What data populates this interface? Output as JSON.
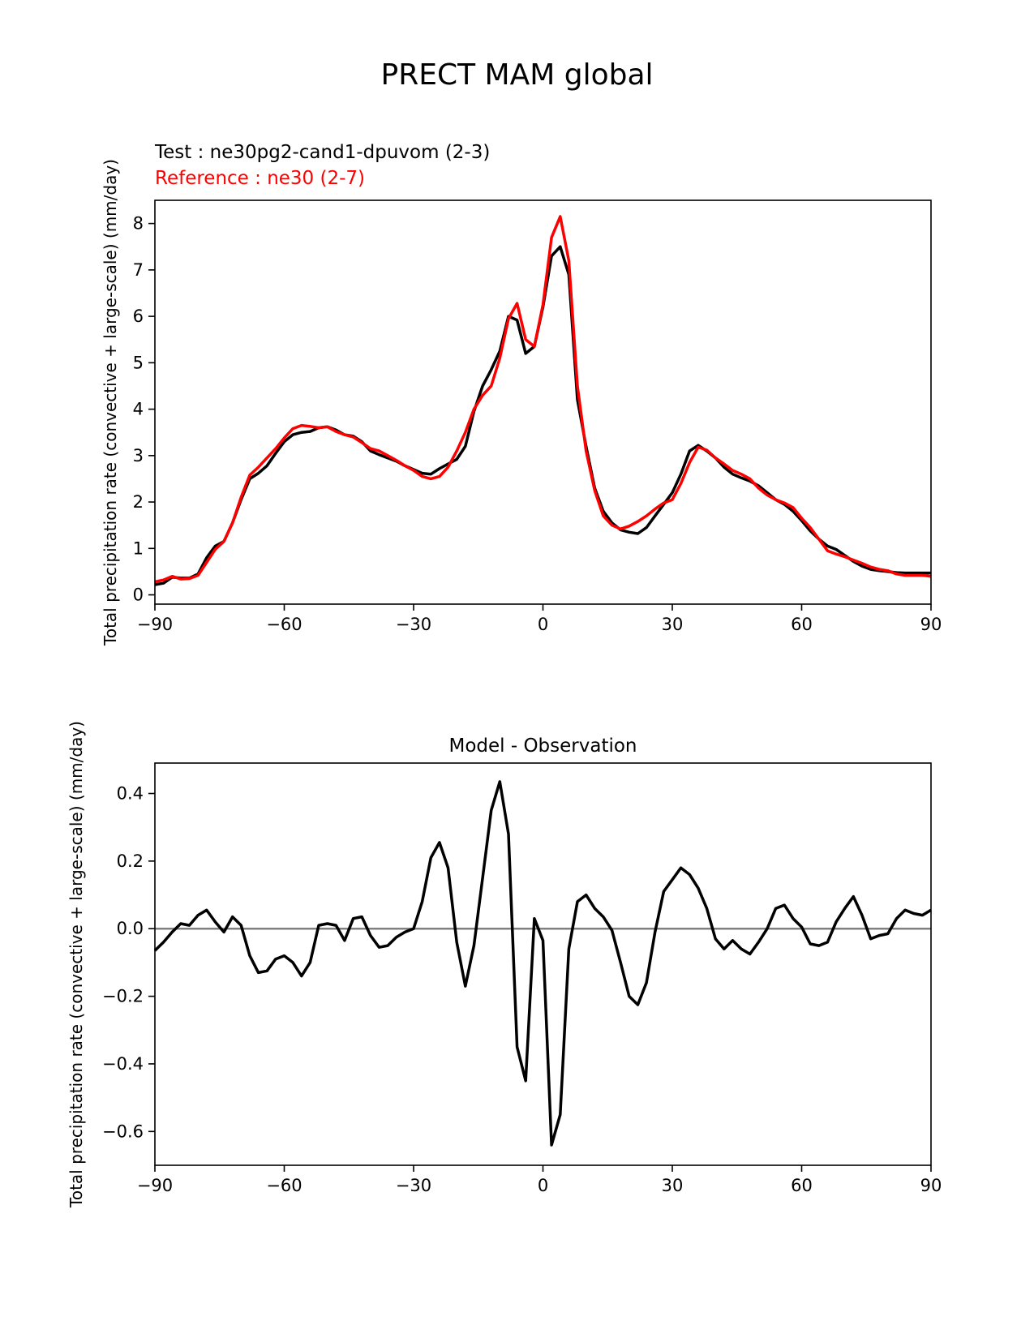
{
  "page_title": "PRECT MAM global",
  "legend": {
    "test_label": "Test : ne30pg2-cand1-dpuvom (2-3)",
    "reference_label": "Reference : ne30 (2-7)"
  },
  "colors": {
    "test": "#000000",
    "reference": "#ff0000",
    "zero_line": "#808080"
  },
  "chart_data": [
    {
      "type": "line",
      "title": "",
      "xlabel": "",
      "ylabel": "Total precipitation rate (convective + large-scale) (mm/day)",
      "xlim": [
        -90,
        90
      ],
      "ylim": [
        -0.2,
        8.5
      ],
      "xticks": [
        -90,
        -60,
        -30,
        0,
        30,
        60,
        90
      ],
      "yticks": [
        0,
        1,
        2,
        3,
        4,
        5,
        6,
        7,
        8
      ],
      "xtick_labels": [
        "−90",
        "−60",
        "−30",
        "0",
        "30",
        "60",
        "90"
      ],
      "ytick_labels": [
        "0",
        "1",
        "2",
        "3",
        "4",
        "5",
        "6",
        "7",
        "8"
      ],
      "series": [
        {
          "name": "Test : ne30pg2-cand1-dpuvom (2-3)",
          "color": "#000000",
          "x": [
            -90,
            -88,
            -86,
            -84,
            -82,
            -80,
            -78,
            -76,
            -74,
            -72,
            -70,
            -68,
            -66,
            -64,
            -62,
            -60,
            -58,
            -56,
            -54,
            -52,
            -50,
            -48,
            -46,
            -44,
            -42,
            -40,
            -38,
            -36,
            -34,
            -32,
            -30,
            -28,
            -26,
            -24,
            -22,
            -20,
            -18,
            -16,
            -14,
            -12,
            -10,
            -8,
            -6,
            -4,
            -2,
            0,
            2,
            4,
            6,
            8,
            10,
            12,
            14,
            16,
            18,
            20,
            22,
            24,
            26,
            28,
            30,
            32,
            34,
            36,
            38,
            40,
            42,
            44,
            46,
            48,
            50,
            52,
            54,
            56,
            58,
            60,
            62,
            64,
            66,
            68,
            70,
            72,
            74,
            76,
            78,
            80,
            82,
            84,
            86,
            88,
            90
          ],
          "y": [
            0.22,
            0.25,
            0.38,
            0.36,
            0.36,
            0.45,
            0.8,
            1.05,
            1.15,
            1.55,
            2.05,
            2.5,
            2.62,
            2.78,
            3.05,
            3.3,
            3.45,
            3.5,
            3.52,
            3.6,
            3.62,
            3.55,
            3.45,
            3.42,
            3.3,
            3.1,
            3.02,
            2.95,
            2.88,
            2.78,
            2.7,
            2.62,
            2.6,
            2.72,
            2.82,
            2.92,
            3.2,
            3.95,
            4.5,
            4.85,
            5.25,
            6.0,
            5.92,
            5.2,
            5.35,
            6.2,
            7.3,
            7.5,
            6.9,
            4.2,
            3.2,
            2.3,
            1.8,
            1.55,
            1.4,
            1.35,
            1.32,
            1.45,
            1.7,
            1.95,
            2.2,
            2.6,
            3.1,
            3.22,
            3.1,
            2.95,
            2.75,
            2.6,
            2.52,
            2.45,
            2.35,
            2.2,
            2.05,
            1.95,
            1.8,
            1.6,
            1.38,
            1.2,
            1.05,
            0.98,
            0.85,
            0.72,
            0.62,
            0.55,
            0.52,
            0.5,
            0.48,
            0.47,
            0.47,
            0.47,
            0.47
          ]
        },
        {
          "name": "Reference : ne30 (2-7)",
          "color": "#ff0000",
          "x": [
            -90,
            -88,
            -86,
            -84,
            -82,
            -80,
            -78,
            -76,
            -74,
            -72,
            -70,
            -68,
            -66,
            -64,
            -62,
            -60,
            -58,
            -56,
            -54,
            -52,
            -50,
            -48,
            -46,
            -44,
            -42,
            -40,
            -38,
            -36,
            -34,
            -32,
            -30,
            -28,
            -26,
            -24,
            -22,
            -20,
            -18,
            -16,
            -14,
            -12,
            -10,
            -8,
            -6,
            -4,
            -2,
            0,
            2,
            4,
            6,
            8,
            10,
            12,
            14,
            16,
            18,
            20,
            22,
            24,
            26,
            28,
            30,
            32,
            34,
            36,
            38,
            40,
            42,
            44,
            46,
            48,
            50,
            52,
            54,
            56,
            58,
            60,
            62,
            64,
            66,
            68,
            70,
            72,
            74,
            76,
            78,
            80,
            82,
            84,
            86,
            88,
            90
          ],
          "y": [
            0.28,
            0.32,
            0.4,
            0.34,
            0.35,
            0.42,
            0.7,
            0.98,
            1.15,
            1.55,
            2.1,
            2.58,
            2.75,
            2.95,
            3.15,
            3.38,
            3.58,
            3.65,
            3.63,
            3.6,
            3.62,
            3.52,
            3.45,
            3.4,
            3.28,
            3.15,
            3.1,
            3.0,
            2.9,
            2.78,
            2.68,
            2.55,
            2.5,
            2.55,
            2.75,
            3.1,
            3.5,
            4.0,
            4.3,
            4.5,
            5.1,
            5.95,
            6.28,
            5.5,
            5.35,
            6.25,
            7.7,
            8.15,
            7.2,
            4.5,
            3.1,
            2.25,
            1.7,
            1.5,
            1.42,
            1.48,
            1.58,
            1.7,
            1.85,
            1.98,
            2.05,
            2.4,
            2.85,
            3.18,
            3.12,
            2.95,
            2.82,
            2.68,
            2.6,
            2.5,
            2.3,
            2.15,
            2.05,
            1.98,
            1.88,
            1.65,
            1.45,
            1.2,
            0.95,
            0.88,
            0.82,
            0.75,
            0.68,
            0.6,
            0.55,
            0.52,
            0.45,
            0.42,
            0.42,
            0.42,
            0.4
          ]
        }
      ]
    },
    {
      "type": "line",
      "title": "Model - Observation",
      "xlabel": "",
      "ylabel": "Total precipitation rate (convective + large-scale) (mm/day)",
      "xlim": [
        -90,
        90
      ],
      "ylim": [
        -0.7,
        0.49
      ],
      "xticks": [
        -90,
        -60,
        -30,
        0,
        30,
        60,
        90
      ],
      "yticks": [
        -0.6,
        -0.4,
        -0.2,
        0.0,
        0.2,
        0.4
      ],
      "xtick_labels": [
        "−90",
        "−60",
        "−30",
        "0",
        "30",
        "60",
        "90"
      ],
      "ytick_labels": [
        "−0.6",
        "−0.4",
        "−0.2",
        "0.0",
        "0.2",
        "0.4"
      ],
      "zero_line": 0.0,
      "series": [
        {
          "name": "Model - Observation",
          "color": "#000000",
          "x": [
            -90,
            -88,
            -86,
            -84,
            -82,
            -80,
            -78,
            -76,
            -74,
            -72,
            -70,
            -68,
            -66,
            -64,
            -62,
            -60,
            -58,
            -56,
            -54,
            -52,
            -50,
            -48,
            -46,
            -44,
            -42,
            -40,
            -38,
            -36,
            -34,
            -32,
            -30,
            -28,
            -26,
            -24,
            -22,
            -20,
            -18,
            -16,
            -14,
            -12,
            -10,
            -8,
            -6,
            -4,
            -2,
            0,
            2,
            4,
            6,
            8,
            10,
            12,
            14,
            16,
            18,
            20,
            22,
            24,
            26,
            28,
            30,
            32,
            34,
            36,
            38,
            40,
            42,
            44,
            46,
            48,
            50,
            52,
            54,
            56,
            58,
            60,
            62,
            64,
            66,
            68,
            70,
            72,
            74,
            76,
            78,
            80,
            82,
            84,
            86,
            88,
            90
          ],
          "y": [
            -0.065,
            -0.04,
            -0.01,
            0.015,
            0.01,
            0.04,
            0.055,
            0.02,
            -0.01,
            0.035,
            0.01,
            -0.08,
            -0.13,
            -0.125,
            -0.09,
            -0.08,
            -0.1,
            -0.14,
            -0.1,
            0.01,
            0.015,
            0.01,
            -0.035,
            0.03,
            0.035,
            -0.02,
            -0.055,
            -0.05,
            -0.025,
            -0.01,
            0.0,
            0.08,
            0.21,
            0.255,
            0.18,
            -0.04,
            -0.17,
            -0.05,
            0.15,
            0.35,
            0.435,
            0.28,
            -0.35,
            -0.45,
            0.03,
            -0.035,
            -0.64,
            -0.55,
            -0.06,
            0.08,
            0.1,
            0.06,
            0.035,
            -0.005,
            -0.1,
            -0.2,
            -0.225,
            -0.16,
            -0.01,
            0.11,
            0.145,
            0.18,
            0.16,
            0.12,
            0.06,
            -0.03,
            -0.06,
            -0.035,
            -0.06,
            -0.075,
            -0.04,
            0.0,
            0.06,
            0.07,
            0.03,
            0.005,
            -0.045,
            -0.05,
            -0.04,
            0.02,
            0.06,
            0.095,
            0.04,
            -0.03,
            -0.02,
            -0.015,
            0.03,
            0.055,
            0.045,
            0.04,
            0.055
          ]
        }
      ]
    }
  ]
}
